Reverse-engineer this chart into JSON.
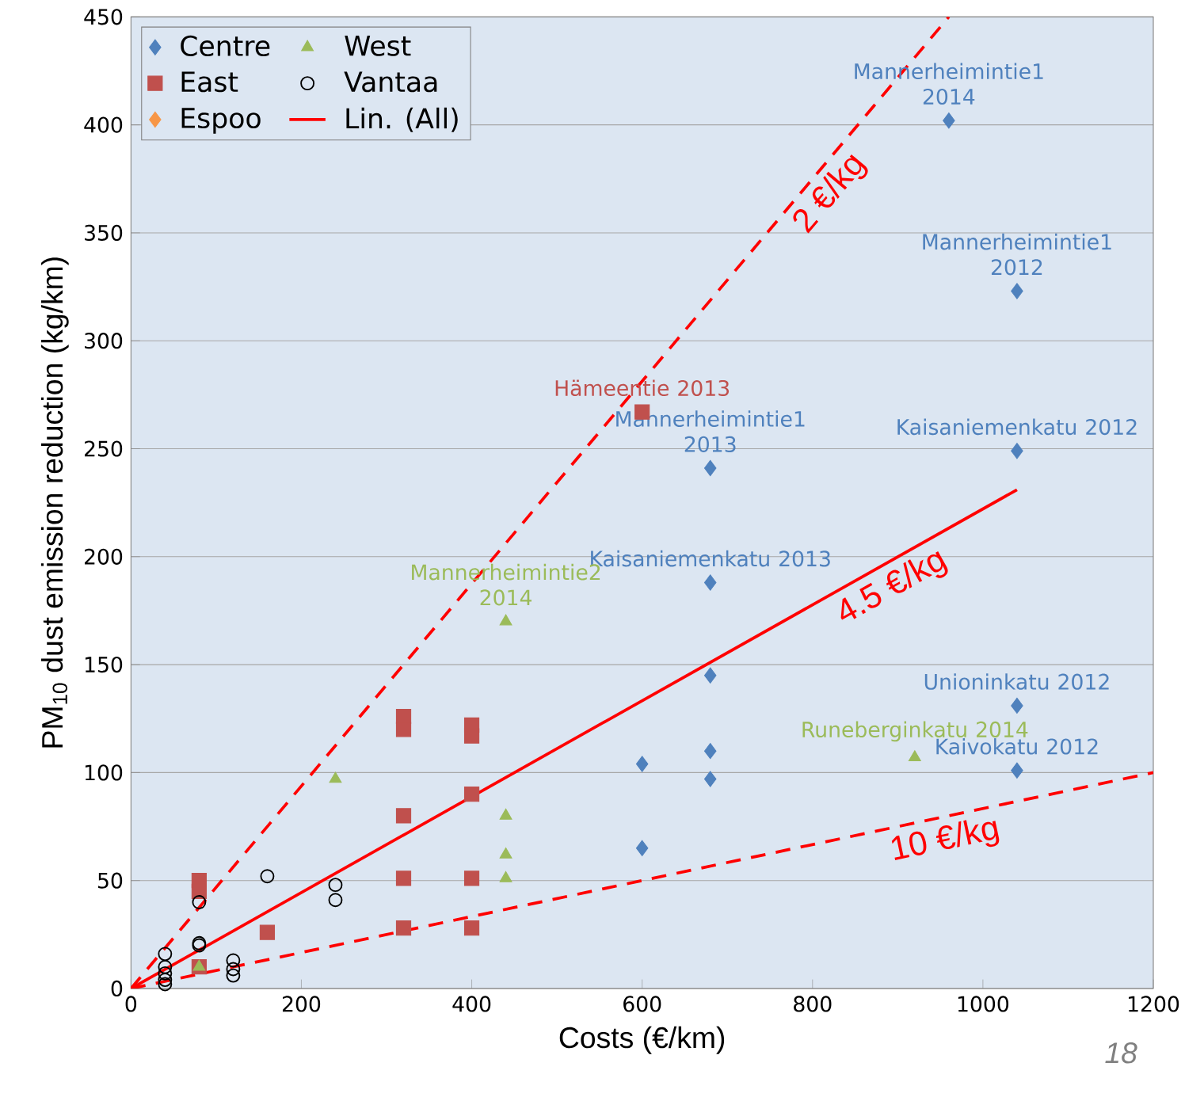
{
  "chart_data": {
    "type": "scatter",
    "xlabel": "Costs (€/km)",
    "ylabel": "PM$_{10}$ dust emission reduction (kg/km)",
    "xlim": [
      0,
      1200
    ],
    "ylim": [
      0,
      450
    ],
    "xticks": [
      0,
      200,
      400,
      600,
      800,
      1000,
      1200
    ],
    "yticks": [
      0,
      50,
      100,
      150,
      200,
      250,
      300,
      350,
      400,
      450
    ],
    "grid": "y",
    "legend": "top left",
    "series": [
      {
        "name": "Centre",
        "color": "#4f81bd",
        "marker": "diamond",
        "x": [
          960,
          1040,
          680,
          1040,
          680,
          680,
          1040,
          680,
          600,
          1040,
          680,
          600
        ],
        "values": [
          402,
          323,
          241,
          249,
          188,
          145,
          131,
          110,
          104,
          101,
          97,
          65
        ]
      },
      {
        "name": "East",
        "color": "#c0504d",
        "marker": "square",
        "x": [
          600,
          320,
          320,
          400,
          400,
          320,
          400,
          320,
          400,
          320,
          400,
          160,
          80,
          80,
          80
        ],
        "values": [
          267,
          126,
          120,
          122,
          117,
          80,
          90,
          51,
          51,
          28,
          28,
          26,
          50,
          45,
          10
        ]
      },
      {
        "name": "Espoo",
        "color": "#f79646",
        "marker": "diamond"
      },
      {
        "name": "West",
        "color": "#9bbb59",
        "marker": "triangle",
        "x": [
          440,
          240,
          440,
          440,
          440,
          920,
          80
        ],
        "values": [
          170,
          97,
          80,
          62,
          51,
          107,
          10
        ]
      },
      {
        "name": "Vantaa",
        "color": "#000000",
        "marker": "circle",
        "x": [
          160,
          240,
          240,
          80,
          80,
          80,
          40,
          40,
          40,
          40,
          40,
          120,
          120,
          120
        ],
        "values": [
          52,
          48,
          41,
          40,
          21,
          20,
          16,
          10,
          7,
          4,
          2,
          13,
          9,
          6
        ]
      },
      {
        "name": "Lin. (All)",
        "type": "line",
        "color": "#ff0000",
        "marker": "none",
        "line_style": "solid",
        "x": [
          0,
          1040
        ],
        "values": [
          0,
          231
        ]
      },
      {
        "type": "line",
        "color": "#ff0000",
        "marker": "none",
        "line_style": "dashed",
        "x": [
          0,
          960
        ],
        "values": [
          0,
          450
        ]
      },
      {
        "type": "line",
        "color": "#ff0000",
        "marker": "none",
        "line_style": "dashed",
        "x": [
          0,
          1200
        ],
        "values": [
          0,
          100
        ]
      }
    ],
    "annotations": [
      {
        "text": "Mannerheimintie1  2014",
        "x": 960,
        "y": 402
      },
      {
        "text": "Mannerheimintie1  2012",
        "x": 1040,
        "y": 323
      },
      {
        "text": "Kaisaniemenkatu  2012",
        "x": 1040,
        "y": 249
      },
      {
        "text": "Hämeentie 2013",
        "x": 600,
        "y": 267
      },
      {
        "text": "Mannerheimintie1  2013",
        "x": 680,
        "y": 241
      },
      {
        "text": "Kaisaniemenkatu 2013",
        "x": 680,
        "y": 188
      },
      {
        "text": "Mannerheimintie2 2014",
        "x": 440,
        "y": 170
      },
      {
        "text": "Unioninkatu  2012",
        "x": 1040,
        "y": 131
      },
      {
        "text": "Runeberginkatu 2014",
        "x": 920,
        "y": 107
      },
      {
        "text": "Kaivokatu  2012",
        "x": 1040,
        "y": 101
      },
      {
        "text": "2 €/kg",
        "x": 800,
        "y": 375
      },
      {
        "text": "4.5 €/kg",
        "x": 880,
        "y": 195
      },
      {
        "text": "10 €/kg",
        "x": 950,
        "y": 79
      },
      "18"
    ]
  }
}
